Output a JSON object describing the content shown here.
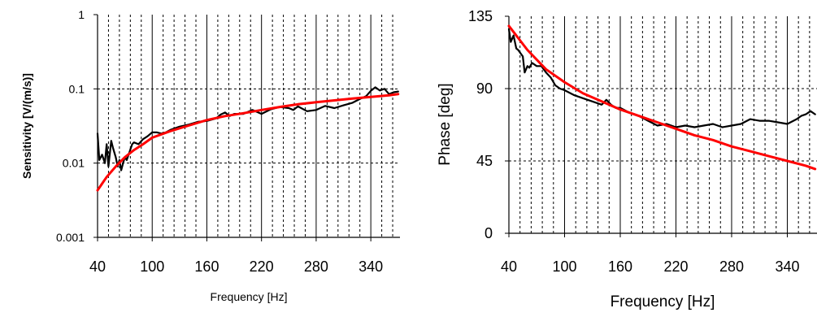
{
  "chart_data": [
    {
      "type": "line",
      "xlabel": "Frequency [Hz]",
      "ylabel": "Sensitivity [V/(m/s)]",
      "xlim": [
        40,
        372
      ],
      "ylim": [
        0.001,
        1
      ],
      "yscale": "log",
      "x_ticks": [
        "40",
        "100",
        "160",
        "220",
        "280",
        "340"
      ],
      "y_ticks": [
        "0.001",
        "0.01",
        "0.1",
        "1"
      ],
      "grid": "major solid, minor dashed vertical; horizontal at decades",
      "series": [
        {
          "color": "#000000",
          "x": [
            40,
            42,
            45,
            48,
            50,
            52,
            55,
            57,
            60,
            62,
            64,
            66,
            68,
            70,
            72,
            75,
            78,
            80,
            85,
            90,
            95,
            100,
            105,
            110,
            115,
            120,
            130,
            140,
            150,
            160,
            170,
            175,
            180,
            185,
            190,
            200,
            210,
            220,
            230,
            240,
            250,
            255,
            260,
            270,
            280,
            290,
            300,
            310,
            320,
            325,
            330,
            335,
            340,
            345,
            350,
            355,
            360,
            365,
            370
          ],
          "y": [
            0.025,
            0.011,
            0.013,
            0.01,
            0.018,
            0.009,
            0.02,
            0.016,
            0.012,
            0.009,
            0.011,
            0.008,
            0.01,
            0.012,
            0.011,
            0.014,
            0.018,
            0.019,
            0.018,
            0.021,
            0.023,
            0.026,
            0.026,
            0.025,
            0.026,
            0.028,
            0.031,
            0.033,
            0.036,
            0.037,
            0.04,
            0.045,
            0.048,
            0.043,
            0.046,
            0.046,
            0.052,
            0.046,
            0.053,
            0.057,
            0.055,
            0.052,
            0.058,
            0.05,
            0.052,
            0.059,
            0.055,
            0.06,
            0.065,
            0.07,
            0.075,
            0.08,
            0.094,
            0.105,
            0.095,
            0.1,
            0.085,
            0.09,
            0.092
          ]
        },
        {
          "color": "#ff0000",
          "x": [
            40,
            50,
            60,
            70,
            80,
            90,
            100,
            120,
            140,
            160,
            180,
            200,
            220,
            240,
            260,
            280,
            300,
            320,
            340,
            360,
            370
          ],
          "y": [
            0.0043,
            0.0065,
            0.009,
            0.012,
            0.015,
            0.018,
            0.022,
            0.027,
            0.032,
            0.038,
            0.043,
            0.047,
            0.052,
            0.057,
            0.062,
            0.066,
            0.07,
            0.074,
            0.078,
            0.082,
            0.085
          ]
        }
      ]
    },
    {
      "type": "line",
      "xlabel": "Frequency [Hz]",
      "ylabel": "Phase [deg]",
      "xlim": [
        40,
        372
      ],
      "ylim": [
        0,
        135
      ],
      "x_ticks": [
        "40",
        "100",
        "160",
        "220",
        "280",
        "340"
      ],
      "y_ticks": [
        "0",
        "45",
        "90",
        "135"
      ],
      "grid": "major solid, minor dashed vertical; horizontal at 45, 90",
      "series": [
        {
          "color": "#000000",
          "x": [
            40,
            42,
            45,
            48,
            50,
            55,
            57,
            60,
            62,
            65,
            70,
            75,
            80,
            85,
            90,
            95,
            100,
            110,
            120,
            130,
            140,
            145,
            150,
            155,
            160,
            170,
            180,
            190,
            200,
            210,
            220,
            230,
            240,
            250,
            260,
            270,
            280,
            290,
            300,
            310,
            320,
            330,
            340,
            350,
            355,
            360,
            365,
            370
          ],
          "y": [
            127,
            119,
            123,
            115,
            114,
            110,
            100,
            104,
            103,
            106,
            104,
            104,
            100,
            97,
            92,
            90,
            89,
            86,
            84,
            82,
            80,
            83,
            80,
            78,
            78,
            75,
            73,
            70,
            67,
            68,
            66,
            67,
            66,
            67,
            68,
            66,
            67,
            68,
            71,
            70,
            70,
            69,
            68,
            71,
            73,
            74,
            76,
            74
          ]
        },
        {
          "color": "#ff0000",
          "x": [
            40,
            60,
            80,
            100,
            120,
            140,
            160,
            180,
            200,
            220,
            240,
            260,
            280,
            300,
            320,
            340,
            360,
            370
          ],
          "y": [
            129,
            114,
            102,
            94,
            87,
            82,
            77,
            73,
            69,
            65,
            61,
            58,
            54,
            51,
            48,
            45,
            42,
            40
          ]
        }
      ]
    }
  ]
}
